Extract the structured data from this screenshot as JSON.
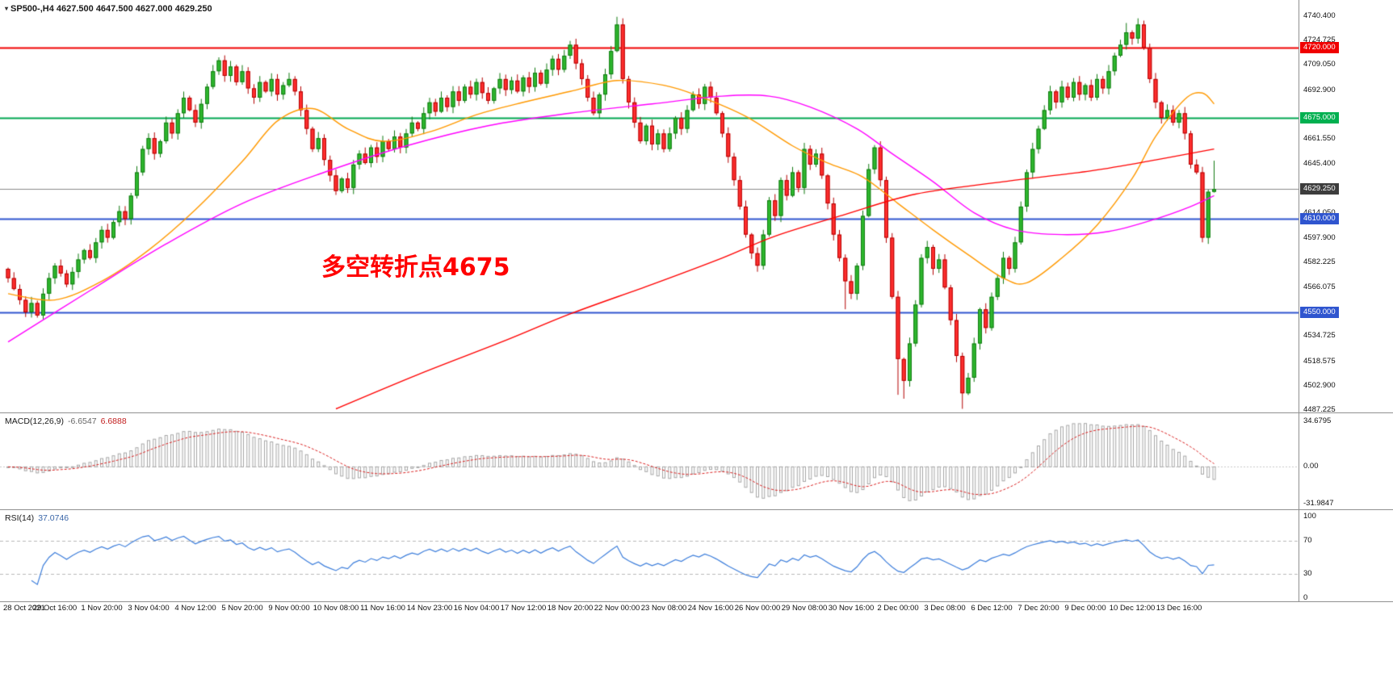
{
  "header": {
    "marker_icon": "▾",
    "title": "SP500-,H4 4627.500 4647.500 4627.000 4629.250"
  },
  "colors": {
    "bull_fill": "#2eb82e",
    "bull_border": "#117a11",
    "bear_fill": "#ff2e2e",
    "bear_border": "#b30000",
    "ma_fast": "#ff9900",
    "ma_mid": "#ff00ff",
    "ma_slow": "#ff0000",
    "hline_red": "#f00000",
    "hline_green": "#00a651",
    "hline_blue": "#2f55cf",
    "current_line": "#8a8a8a",
    "current_badge": "#3d3d3d",
    "macd_hist": "#a6a6a6",
    "macd_signal": "#d92020",
    "rsi_line": "#3d7edb",
    "level_dash": "#b8b8b8"
  },
  "chart_data": {
    "type": "candlestick",
    "symbol": "SP500-",
    "timeframe": "H4",
    "last_bar": {
      "open": 4627.5,
      "high": 4647.5,
      "low": 4627.0,
      "close": 4629.25
    },
    "price_axis": {
      "min": 4487.225,
      "max": 4740.4,
      "ticks": [
        {
          "p": 4740.4,
          "t": "4740.400"
        },
        {
          "p": 4724.725,
          "t": "4724.725"
        },
        {
          "p": 4720.0,
          "t": "4720.000",
          "b": "#f00000"
        },
        {
          "p": 4709.05,
          "t": "4709.050"
        },
        {
          "p": 4692.9,
          "t": "4692.900"
        },
        {
          "p": 4675.0,
          "t": "4675.000",
          "b": "#00b050"
        },
        {
          "p": 4661.55,
          "t": "4661.550"
        },
        {
          "p": 4645.4,
          "t": "4645.400"
        },
        {
          "p": 4629.25,
          "t": "4629.250",
          "b": "#3d3d3d"
        },
        {
          "p": 4614.05,
          "t": "4614.050"
        },
        {
          "p": 4610.0,
          "t": "4610.000",
          "b": "#2f55cf"
        },
        {
          "p": 4597.9,
          "t": "4597.900"
        },
        {
          "p": 4582.225,
          "t": "4582.225"
        },
        {
          "p": 4566.075,
          "t": "4566.075"
        },
        {
          "p": 4550.0,
          "t": "4550.000",
          "b": "#2f55cf"
        },
        {
          "p": 4534.725,
          "t": "4534.725"
        },
        {
          "p": 4518.575,
          "t": "4518.575"
        },
        {
          "p": 4502.9,
          "t": "4502.900"
        },
        {
          "p": 4487.225,
          "t": "4487.225"
        }
      ]
    },
    "candles": {
      "first_open": 4578,
      "closes": [
        4572,
        4565,
        4558,
        4550,
        4556,
        4548,
        4562,
        4572,
        4580,
        4575,
        4568,
        4576,
        4584,
        4590,
        4585,
        4595,
        4603,
        4598,
        4608,
        4615,
        4610,
        4625,
        4640,
        4655,
        4662,
        4652,
        4660,
        4672,
        4665,
        4678,
        4688,
        4680,
        4672,
        4684,
        4695,
        4705,
        4712,
        4702,
        4708,
        4698,
        4705,
        4694,
        4688,
        4698,
        4692,
        4700,
        4690,
        4696,
        4700,
        4692,
        4680,
        4668,
        4655,
        4662,
        4648,
        4638,
        4628,
        4636,
        4630,
        4645,
        4652,
        4646,
        4656,
        4650,
        4660,
        4655,
        4663,
        4656,
        4665,
        4672,
        4668,
        4678,
        4685,
        4679,
        4688,
        4682,
        4692,
        4686,
        4695,
        4690,
        4698,
        4691,
        4686,
        4694,
        4700,
        4693,
        4699,
        4692,
        4701,
        4695,
        4704,
        4697,
        4706,
        4713,
        4706,
        4715,
        4722,
        4710,
        4700,
        4688,
        4678,
        4690,
        4703,
        4718,
        4735,
        4700,
        4685,
        4672,
        4660,
        4670,
        4658,
        4665,
        4655,
        4665,
        4675,
        4668,
        4680,
        4690,
        4684,
        4695,
        4688,
        4678,
        4665,
        4650,
        4635,
        4618,
        4600,
        4588,
        4580,
        4600,
        4622,
        4612,
        4635,
        4625,
        4640,
        4630,
        4655,
        4645,
        4652,
        4638,
        4620,
        4600,
        4585,
        4570,
        4562,
        4580,
        4612,
        4642,
        4656,
        4635,
        4598,
        4560,
        4520,
        4506,
        4530,
        4555,
        4585,
        4592,
        4578,
        4584,
        4566,
        4545,
        4522,
        4498,
        4508,
        4530,
        4552,
        4540,
        4560,
        4572,
        4585,
        4578,
        4595,
        4618,
        4640,
        4655,
        4668,
        4680,
        4692,
        4685,
        4695,
        4688,
        4698,
        4690,
        4696,
        4688,
        4700,
        4694,
        4705,
        4715,
        4722,
        4730,
        4726,
        4735,
        4720,
        4700,
        4685,
        4675,
        4680,
        4672,
        4678,
        4665,
        4645,
        4640,
        4598,
        4627.5,
        4629.25
      ],
      "wick_overrides": {
        "3": {
          "l": 4547
        },
        "96": {
          "h": 4724.5
        },
        "104": {
          "h": 4740.0
        },
        "143": {
          "l": 4552.0
        },
        "152": {
          "l": 4497.0
        },
        "153": {
          "l": 4494.5
        },
        "163": {
          "l": 4488.0
        },
        "191": {
          "h": 4736.0
        },
        "193": {
          "h": 4739.0
        },
        "204": {
          "l": 4595.0
        },
        "206": {
          "h": 4647.5,
          "l": 4627.0
        }
      }
    },
    "moving_averages": [
      {
        "name": "fast-ma-orange",
        "color": "#ff9900",
        "anchors": [
          [
            0,
            4562
          ],
          [
            8,
            4558
          ],
          [
            16,
            4570
          ],
          [
            24,
            4590
          ],
          [
            32,
            4616
          ],
          [
            40,
            4647
          ],
          [
            46,
            4673
          ],
          [
            52,
            4681
          ],
          [
            58,
            4668
          ],
          [
            64,
            4660
          ],
          [
            72,
            4666
          ],
          [
            80,
            4677
          ],
          [
            88,
            4685
          ],
          [
            96,
            4692
          ],
          [
            104,
            4699
          ],
          [
            112,
            4696
          ],
          [
            118,
            4689
          ],
          [
            126,
            4676
          ],
          [
            134,
            4657
          ],
          [
            140,
            4646
          ],
          [
            146,
            4637
          ],
          [
            152,
            4620
          ],
          [
            158,
            4603
          ],
          [
            164,
            4587
          ],
          [
            170,
            4572
          ],
          [
            174,
            4569
          ],
          [
            180,
            4585
          ],
          [
            186,
            4606
          ],
          [
            192,
            4636
          ],
          [
            196,
            4663
          ],
          [
            201,
            4687
          ],
          [
            204,
            4691
          ],
          [
            206,
            4684
          ]
        ]
      },
      {
        "name": "mid-ma-magenta",
        "color": "#ff00ff",
        "anchors": [
          [
            0,
            4531
          ],
          [
            14,
            4564
          ],
          [
            27,
            4594
          ],
          [
            40,
            4620
          ],
          [
            54,
            4640
          ],
          [
            68,
            4657
          ],
          [
            82,
            4670
          ],
          [
            96,
            4678
          ],
          [
            110,
            4684
          ],
          [
            122,
            4689
          ],
          [
            130,
            4689
          ],
          [
            137,
            4682
          ],
          [
            145,
            4668
          ],
          [
            151,
            4652
          ],
          [
            158,
            4634
          ],
          [
            165,
            4614
          ],
          [
            172,
            4603
          ],
          [
            180,
            4600
          ],
          [
            188,
            4602
          ],
          [
            196,
            4610
          ],
          [
            202,
            4618
          ],
          [
            206,
            4625
          ]
        ]
      },
      {
        "name": "slow-ma-red",
        "color": "#ff0000",
        "anchors": [
          [
            56,
            4488
          ],
          [
            70,
            4510
          ],
          [
            85,
            4532
          ],
          [
            96,
            4549
          ],
          [
            110,
            4568
          ],
          [
            122,
            4585
          ],
          [
            131,
            4599
          ],
          [
            143,
            4613
          ],
          [
            155,
            4626
          ],
          [
            170,
            4634
          ],
          [
            185,
            4641
          ],
          [
            196,
            4648
          ],
          [
            206,
            4655
          ]
        ]
      }
    ],
    "hlines": [
      {
        "price": 4720.0,
        "label": "4720.000",
        "color": "#f00000",
        "width": 2
      },
      {
        "price": 4675.0,
        "label": "4675.000",
        "color": "#00a651",
        "width": 2
      },
      {
        "price": 4610.0,
        "label": "4610.000",
        "color": "#2f55cf",
        "width": 2
      },
      {
        "price": 4550.0,
        "label": "4550.000",
        "color": "#2f55cf",
        "width": 2
      }
    ],
    "current_price": {
      "value": 4629.25,
      "label": "4629.250"
    },
    "annotation": {
      "text": "多空转折点4675",
      "color": "#ff0000"
    },
    "macd": {
      "header": "MACD(12,26,9)",
      "value_main": "-6.6547",
      "value_signal": "6.6888",
      "fast": 12,
      "slow": 26,
      "signal": 9,
      "axis": {
        "top": "34.6795",
        "zero": "0.00",
        "bottom": "-31.9847"
      }
    },
    "rsi": {
      "header": "RSI(14)",
      "value": "37.0746",
      "period": 14,
      "levels": [
        70,
        30
      ],
      "axis": [
        {
          "v": 100,
          "t": "100"
        },
        {
          "v": 70,
          "t": "70"
        },
        {
          "v": 30,
          "t": "30"
        },
        {
          "v": 0,
          "t": "0"
        }
      ]
    },
    "time_axis": {
      "labels": [
        "28 Oct 2021",
        "29 Oct 16:00",
        "1 Nov 20:00",
        "3 Nov 04:00",
        "4 Nov 12:00",
        "5 Nov 20:00",
        "9 Nov 00:00",
        "10 Nov 08:00",
        "11 Nov 16:00",
        "14 Nov 23:00",
        "16 Nov 04:00",
        "17 Nov 12:00",
        "18 Nov 20:00",
        "22 Nov 00:00",
        "23 Nov 08:00",
        "24 Nov 16:00",
        "26 Nov 00:00",
        "29 Nov 08:00",
        "30 Nov 16:00",
        "2 Dec 00:00",
        "3 Dec 08:00",
        "6 Dec 12:00",
        "7 Dec 20:00",
        "9 Dec 00:00",
        "10 Dec 12:00",
        "13 Dec 16:00"
      ]
    }
  }
}
